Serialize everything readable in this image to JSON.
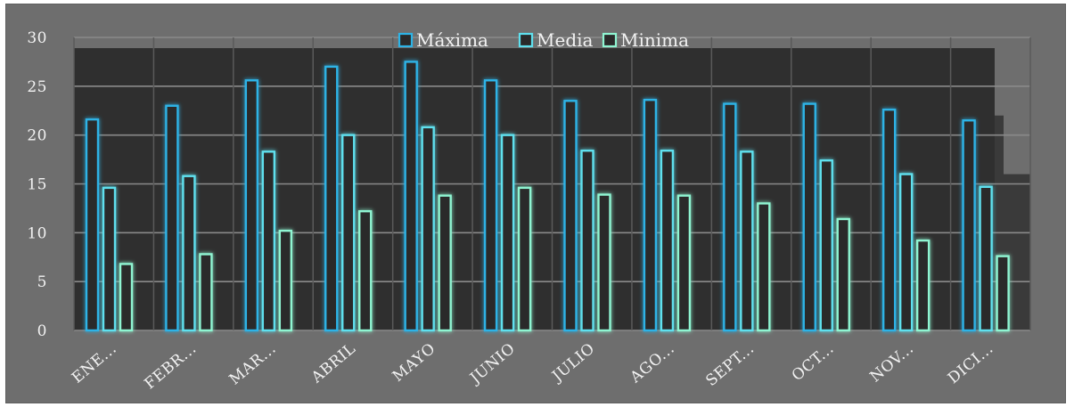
{
  "chart_data": {
    "type": "bar",
    "categories": [
      "ENE...",
      "FEBR...",
      "MAR...",
      "ABRIL",
      "MAYO",
      "JUNIO",
      "JULIO",
      "AGO...",
      "SEPT...",
      "OCT...",
      "NOV...",
      "DICI..."
    ],
    "series": [
      {
        "name": "Máxima",
        "color": "#2db3e6",
        "values": [
          21.6,
          23.0,
          25.6,
          27.0,
          27.5,
          25.6,
          23.5,
          23.6,
          23.2,
          23.2,
          22.6,
          21.5
        ]
      },
      {
        "name": "Media",
        "color": "#5fe0ee",
        "values": [
          14.6,
          15.8,
          18.3,
          20.0,
          20.8,
          20.0,
          18.4,
          18.4,
          18.3,
          17.4,
          16.0,
          14.7
        ]
      },
      {
        "name": "Minima",
        "color": "#8ff5d2",
        "values": [
          6.8,
          7.8,
          10.2,
          12.2,
          13.8,
          14.6,
          13.9,
          13.8,
          13.0,
          11.4,
          9.2,
          7.6
        ]
      }
    ],
    "yticks": [
      0,
      5,
      10,
      15,
      20,
      25,
      30
    ],
    "ylim": [
      0,
      30
    ],
    "title": "",
    "xlabel": "",
    "ylabel": "",
    "legend": "top-center",
    "grid": true
  }
}
